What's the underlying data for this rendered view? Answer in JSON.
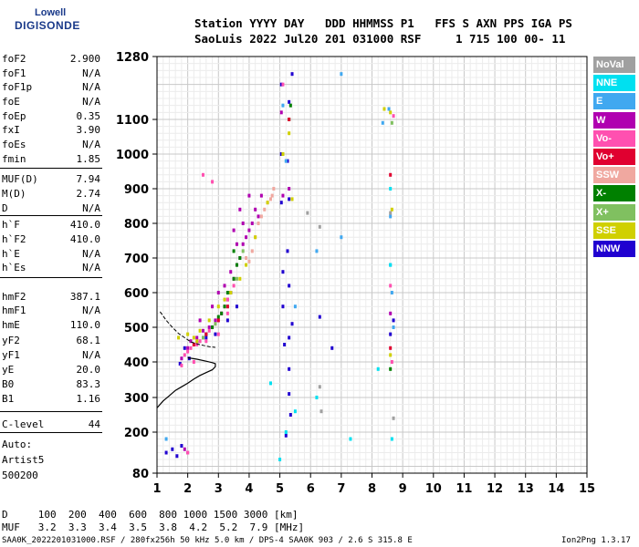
{
  "logo": {
    "line1": "Lowell",
    "line2": "DIGISONDE"
  },
  "header": {
    "line1": "Station YYYY DAY   DDD HHMMSS P1   FFS S AXN PPS IGA PS",
    "line2": "SaoLuis 2022 Jul20 201 031000 RSF     1 715 100 00- 11"
  },
  "params": [
    {
      "name": "foF2",
      "value": "2.900"
    },
    {
      "name": "foF1",
      "value": "N/A"
    },
    {
      "name": "foF1p",
      "value": "N/A"
    },
    {
      "name": "foE",
      "value": "N/A"
    },
    {
      "name": "foEp",
      "value": "0.35"
    },
    {
      "name": "fxI",
      "value": "3.90"
    },
    {
      "name": "foEs",
      "value": "N/A"
    },
    {
      "name": "fmin",
      "value": "1.85"
    },
    {
      "name": "MUF(D)",
      "value": "7.94"
    },
    {
      "name": "M(D)",
      "value": "2.74"
    },
    {
      "name": "D",
      "value": "N/A"
    },
    {
      "name": "h`F",
      "value": "410.0"
    },
    {
      "name": "h`F2",
      "value": "410.0"
    },
    {
      "name": "h`E",
      "value": "N/A"
    },
    {
      "name": "h`Es",
      "value": "N/A"
    },
    {
      "name": "hmF2",
      "value": "387.1"
    },
    {
      "name": "hmF1",
      "value": "N/A"
    },
    {
      "name": "hmE",
      "value": "110.0"
    },
    {
      "name": "yF2",
      "value": "68.1"
    },
    {
      "name": "yF1",
      "value": "N/A"
    },
    {
      "name": "yE",
      "value": "20.0"
    },
    {
      "name": "B0",
      "value": "83.3"
    },
    {
      "name": "B1",
      "value": "1.16"
    },
    {
      "name": "C-level",
      "value": "44"
    }
  ],
  "autoscaling": {
    "line1": "Auto:",
    "line2": "Artist5",
    "line3": "500200"
  },
  "legend": [
    {
      "label": "NoVal",
      "color": "#a0a0a0"
    },
    {
      "label": "NNE",
      "color": "#00e0f0"
    },
    {
      "label": "E",
      "color": "#40a8f0"
    },
    {
      "label": "W",
      "color": "#b000b0"
    },
    {
      "label": "Vo-",
      "color": "#ff50b0"
    },
    {
      "label": "Vo+",
      "color": "#e00030"
    },
    {
      "label": "SSW",
      "color": "#f0a8a0"
    },
    {
      "label": "X-",
      "color": "#008000"
    },
    {
      "label": "X+",
      "color": "#80c060"
    },
    {
      "label": "SSE",
      "color": "#d0d000"
    },
    {
      "label": "NNW",
      "color": "#2000d0"
    }
  ],
  "footer": {
    "d_row": "D     100  200  400  600  800 1000 1500 3000 [km]",
    "muf_row": "MUF   3.2  3.3  3.4  3.5  3.8  4.2  5.2  7.9 [MHz]",
    "info": "SAA0K_2022201031000.RSF / 280fx256h 50 kHz 5.0 km / DPS-4 SAA0K 903 / 2.6 S 315.8 E",
    "version": "Ion2Png 1.3.17"
  },
  "chart_data": {
    "type": "scatter",
    "xlabel": "",
    "ylabel": "",
    "xlim": [
      1,
      15
    ],
    "ylim": [
      80,
      1280
    ],
    "x_ticks": [
      1,
      2,
      3,
      4,
      5,
      6,
      7,
      8,
      9,
      10,
      11,
      12,
      13,
      14,
      15
    ],
    "y_ticks": [
      80,
      200,
      300,
      400,
      500,
      600,
      700,
      800,
      900,
      1000,
      1100,
      1280
    ],
    "grid": true,
    "legend_placement": "right",
    "series": [
      {
        "name": "NNW",
        "color": "#2000d0",
        "x": [
          1.9,
          2.05,
          1.75,
          2.3,
          2.6,
          2.9,
          3.3,
          3.6,
          5.05,
          5.05,
          5.05,
          5.1,
          5.1,
          5.15,
          5.3,
          5.3,
          5.35,
          5.4,
          5.3,
          5.25,
          5.3,
          5.25,
          5.3,
          5.4,
          5.3,
          5.2,
          6.3,
          6.7,
          8.6,
          8.7,
          1.3,
          1.5,
          1.65,
          1.8
        ],
        "y": [
          440,
          410,
          395,
          455,
          470,
          480,
          520,
          560,
          1200,
          1000,
          860,
          660,
          560,
          450,
          380,
          310,
          250,
          1230,
          1150,
          980,
          870,
          720,
          620,
          510,
          470,
          190,
          530,
          440,
          480,
          520,
          140,
          150,
          130,
          160
        ]
      },
      {
        "name": "W",
        "color": "#b000b0",
        "x": [
          1.8,
          2.0,
          2.1,
          2.3,
          2.5,
          2.7,
          2.9,
          3.1,
          3.3,
          3.4,
          3.5,
          3.6,
          3.7,
          3.8,
          3.9,
          4.0,
          4.1,
          4.2,
          3.2,
          3.4,
          3.6,
          3.8,
          4.0,
          3.5,
          3.7,
          2.4,
          2.8,
          3.0,
          4.3,
          4.4,
          5.05,
          5.1,
          5.3,
          8.6,
          1.9,
          2.0
        ],
        "y": [
          410,
          440,
          460,
          470,
          490,
          500,
          520,
          540,
          580,
          600,
          640,
          680,
          700,
          740,
          760,
          780,
          800,
          840,
          620,
          660,
          740,
          800,
          880,
          780,
          840,
          520,
          560,
          600,
          820,
          880,
          1120,
          880,
          900,
          540,
          150,
          140
        ]
      },
      {
        "name": "Vo-",
        "color": "#ff50b0",
        "x": [
          1.9,
          2.0,
          2.1,
          2.2,
          2.3,
          2.4,
          2.5,
          2.6,
          2.7,
          2.8,
          2.9,
          3.0,
          3.1,
          3.2,
          3.3,
          3.4,
          3.5,
          2.2,
          2.6,
          3.0,
          3.3,
          1.8,
          2.0,
          5.1,
          8.6,
          8.65,
          8.7,
          2.5,
          2.8
        ],
        "y": [
          420,
          430,
          440,
          450,
          450,
          460,
          470,
          480,
          490,
          500,
          510,
          520,
          540,
          560,
          580,
          600,
          620,
          400,
          460,
          480,
          540,
          390,
          140,
          1200,
          620,
          400,
          1110,
          940,
          920
        ]
      },
      {
        "name": "SSW",
        "color": "#f0a8a0",
        "x": [
          4.1,
          4.2,
          4.3,
          4.4,
          4.5,
          4.6,
          4.7,
          4.75,
          4.8,
          3.9,
          4.0
        ],
        "y": [
          720,
          760,
          800,
          820,
          840,
          860,
          870,
          880,
          900,
          700,
          690
        ]
      },
      {
        "name": "X-",
        "color": "#008000",
        "x": [
          2.6,
          2.8,
          3.0,
          3.2,
          3.4,
          3.5,
          3.6,
          3.7,
          3.5,
          3.3,
          3.1,
          5.3,
          5.35,
          8.6
        ],
        "y": [
          480,
          500,
          530,
          560,
          600,
          640,
          680,
          700,
          720,
          600,
          540,
          1100,
          1140,
          380
        ]
      },
      {
        "name": "X+",
        "color": "#80c060",
        "x": [
          2.5,
          2.9,
          3.3,
          3.6,
          3.8,
          5.1,
          8.65
        ],
        "y": [
          470,
          510,
          560,
          640,
          720,
          1000,
          1090
        ]
      },
      {
        "name": "SSE",
        "color": "#d0d000",
        "x": [
          2.0,
          2.2,
          2.4,
          2.7,
          3.0,
          3.2,
          3.4,
          3.7,
          3.9,
          4.2,
          4.6,
          5.1,
          5.3,
          5.4,
          8.4,
          8.6,
          8.65,
          8.6,
          1.7,
          2.3
        ],
        "y": [
          480,
          470,
          490,
          520,
          560,
          580,
          600,
          640,
          680,
          760,
          860,
          1000,
          1060,
          870,
          1130,
          1120,
          840,
          420,
          470,
          460
        ]
      },
      {
        "name": "Vo+",
        "color": "#e00030",
        "x": [
          2.2,
          2.6,
          3.0,
          3.3,
          8.6,
          8.6,
          5.3
        ],
        "y": [
          450,
          480,
          520,
          560,
          940,
          440,
          1100
        ]
      },
      {
        "name": "E",
        "color": "#40a8f0",
        "x": [
          5.1,
          5.2,
          5.5,
          6.2,
          7.0,
          7.0,
          8.6,
          8.65,
          8.7,
          8.6,
          1.3,
          8.35,
          8.55
        ],
        "y": [
          1140,
          980,
          560,
          720,
          1230,
          760,
          680,
          600,
          500,
          820,
          180,
          1090,
          1130
        ]
      },
      {
        "name": "NNE",
        "color": "#00e0f0",
        "x": [
          4.7,
          5.2,
          5.5,
          6.2,
          8.2,
          8.6,
          8.65,
          8.6,
          5.0,
          7.3
        ],
        "y": [
          340,
          200,
          260,
          300,
          380,
          680,
          180,
          900,
          120,
          180
        ]
      },
      {
        "name": "NoVal",
        "color": "#a0a0a0",
        "x": [
          5.9,
          6.3,
          6.3,
          6.35,
          8.6,
          8.7
        ],
        "y": [
          830,
          330,
          790,
          260,
          830,
          240
        ]
      }
    ],
    "profile_curve": {
      "x": [
        1.0,
        1.2,
        1.4,
        1.6,
        1.8,
        2.0,
        2.2,
        2.4,
        2.6,
        2.8,
        2.9,
        2.9,
        2.8,
        2.6,
        2.3,
        2.0
      ],
      "y": [
        270,
        290,
        305,
        320,
        330,
        340,
        352,
        362,
        370,
        378,
        387,
        395,
        398,
        402,
        408,
        412
      ]
    },
    "trace_line": {
      "x": [
        1.1,
        1.3,
        1.5,
        1.7,
        1.9,
        2.1,
        2.3,
        2.5,
        2.7,
        2.9
      ],
      "y": [
        545,
        520,
        500,
        482,
        470,
        458,
        452,
        448,
        444,
        442
      ]
    }
  }
}
